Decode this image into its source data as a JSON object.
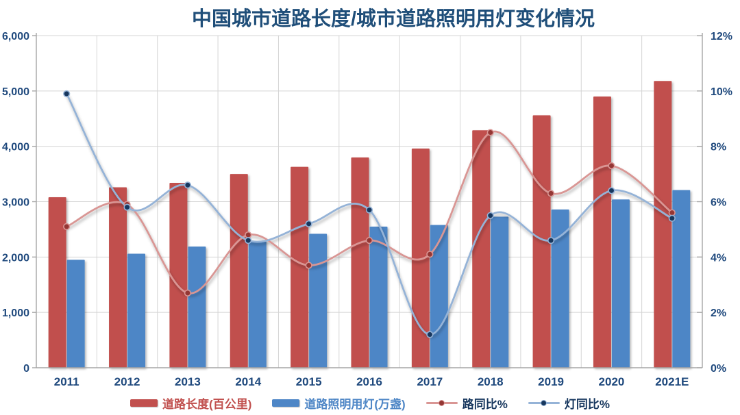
{
  "title": "中国城市道路长度/城市道路照明用灯变化情况",
  "colors": {
    "title_text": "#1F4E79",
    "axis_text": "#1F497D",
    "grid_line": "#D4D4D4",
    "axis_line": "#A6A6A6",
    "background": "#FFFFFF"
  },
  "chart_data": {
    "type": "bar",
    "subtype": "combo-bar-line-dual-axis",
    "title": "中国城市道路长度/城市道路照明用灯变化情况",
    "categories": [
      "2011",
      "2012",
      "2013",
      "2014",
      "2015",
      "2016",
      "2017",
      "2018",
      "2019",
      "2020",
      "2021E"
    ],
    "series": [
      {
        "name": "道路长度(百公里)",
        "type": "bar",
        "axis": "left",
        "color": "#C1504E",
        "legend_text_color": "#C1504E",
        "values": [
          3080,
          3260,
          3340,
          3500,
          3630,
          3800,
          3960,
          4290,
          4560,
          4900,
          5180
        ]
      },
      {
        "name": "道路照明用灯(万盏)",
        "type": "bar",
        "axis": "left",
        "color": "#4E86C6",
        "legend_text_color": "#4E86C6",
        "values": [
          1950,
          2060,
          2190,
          2290,
          2420,
          2550,
          2580,
          2730,
          2860,
          3040,
          3210
        ]
      },
      {
        "name": "路同比%",
        "type": "line",
        "axis": "right",
        "color": "#D99694",
        "marker_color": "#943634",
        "legend_text_color": "#17375E",
        "values": [
          5.1,
          5.9,
          2.7,
          4.8,
          3.7,
          4.6,
          4.1,
          8.5,
          6.3,
          7.3,
          5.6
        ]
      },
      {
        "name": "灯同比%",
        "type": "line",
        "axis": "right",
        "color": "#95B3D7",
        "marker_color": "#17375E",
        "legend_text_color": "#17375E",
        "values": [
          9.9,
          5.8,
          6.6,
          4.6,
          5.2,
          5.7,
          1.2,
          5.5,
          4.6,
          6.4,
          5.4
        ]
      }
    ],
    "left_axis": {
      "min": 0,
      "max": 6000,
      "step": 1000,
      "tick_labels": [
        "0",
        "1,000",
        "2,000",
        "3,000",
        "4,000",
        "5,000",
        "6,000"
      ]
    },
    "right_axis": {
      "min": 0,
      "max": 12,
      "step": 2,
      "tick_labels": [
        "0%",
        "2%",
        "4%",
        "6%",
        "8%",
        "10%",
        "12%"
      ]
    },
    "grid": true,
    "legend_position": "bottom"
  }
}
